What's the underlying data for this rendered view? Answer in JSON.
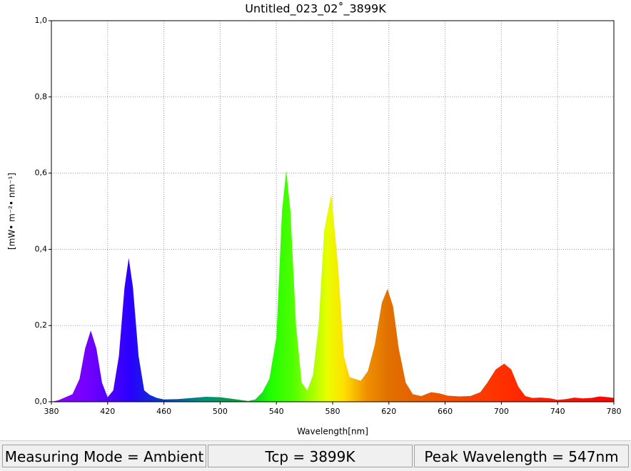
{
  "chart_data": {
    "type": "area",
    "title": "Untitled_023_02˚_3899K",
    "x_label": "Wavelength[nm]",
    "y_label": "[mW• m⁻²• nm⁻¹]",
    "x": [
      380,
      385,
      390,
      395,
      400,
      404,
      408,
      412,
      416,
      420,
      424,
      428,
      432,
      435,
      438,
      442,
      446,
      450,
      455,
      460,
      470,
      480,
      490,
      500,
      510,
      520,
      525,
      530,
      535,
      540,
      544,
      547,
      550,
      554,
      558,
      562,
      566,
      570,
      574,
      579,
      584,
      588,
      592,
      596,
      600,
      605,
      610,
      615,
      619,
      623,
      627,
      632,
      637,
      643,
      650,
      656,
      662,
      670,
      678,
      685,
      690,
      696,
      702,
      707,
      712,
      717,
      722,
      728,
      735,
      740,
      746,
      752,
      758,
      764,
      770,
      776,
      780
    ],
    "values": [
      0,
      0.004,
      0.012,
      0.02,
      0.06,
      0.14,
      0.187,
      0.14,
      0.05,
      0.012,
      0.03,
      0.12,
      0.3,
      0.377,
      0.3,
      0.12,
      0.03,
      0.018,
      0.01,
      0.006,
      0.007,
      0.01,
      0.013,
      0.012,
      0.007,
      0.002,
      0.006,
      0.025,
      0.06,
      0.17,
      0.5,
      0.608,
      0.5,
      0.2,
      0.05,
      0.03,
      0.07,
      0.2,
      0.45,
      0.545,
      0.35,
      0.12,
      0.065,
      0.06,
      0.055,
      0.08,
      0.15,
      0.26,
      0.296,
      0.25,
      0.14,
      0.05,
      0.02,
      0.015,
      0.025,
      0.022,
      0.016,
      0.014,
      0.015,
      0.025,
      0.05,
      0.085,
      0.1,
      0.085,
      0.04,
      0.015,
      0.01,
      0.011,
      0.009,
      0.005,
      0.007,
      0.011,
      0.009,
      0.01,
      0.014,
      0.012,
      0.01
    ],
    "xlim": [
      380,
      780
    ],
    "xticks": [
      380,
      420,
      460,
      500,
      540,
      580,
      620,
      660,
      700,
      740,
      780
    ],
    "ylim": [
      0,
      1
    ],
    "yticks": [
      {
        "value": 0,
        "label": "0,0"
      },
      {
        "value": 0.2,
        "label": "0,2"
      },
      {
        "value": 0.4,
        "label": "0,4"
      },
      {
        "value": 0.6,
        "label": "0,6"
      },
      {
        "value": 0.8,
        "label": "0,8"
      },
      {
        "value": 1,
        "label": "1,0"
      }
    ],
    "grid": true
  },
  "footer": {
    "measuring_mode": "Measuring Mode = Ambient",
    "tcp": "Tcp = 3899K",
    "peak": "Peak Wavelength = 547nm"
  }
}
